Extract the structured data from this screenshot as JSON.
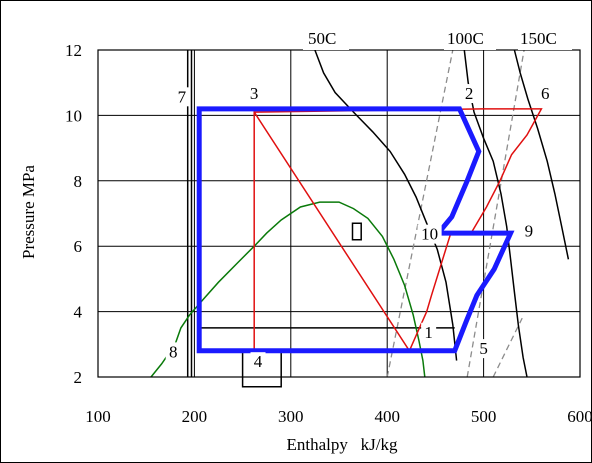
{
  "chart_data": {
    "type": "line",
    "xlabel": "Enthalpy   kJ/kg",
    "ylabel": "Pressure MPa",
    "xlim": [
      100,
      600
    ],
    "ylim": [
      2,
      12
    ],
    "xticks": [
      100,
      200,
      300,
      400,
      500,
      600
    ],
    "yticks": [
      2,
      4,
      6,
      8,
      10,
      12
    ],
    "grid": true,
    "colors": {
      "cycle_outer": "#1a1aff",
      "cycle_inner": "#e01010",
      "saturation_dome": "#0a7a0a",
      "isotherm": "#000000",
      "isentrope": "#8c8c8c",
      "auxiliary": "#000000"
    },
    "isotherm_labels": [
      "50C",
      "100C",
      "150C"
    ],
    "series": [
      {
        "key": "outer_cycle",
        "style": "cycle_outer",
        "closed": true,
        "x": [
          205,
          205,
          475,
          495,
          483,
          467,
          453,
          528,
          511,
          493,
          482,
          470,
          205
        ],
        "y": [
          2.8,
          10.2,
          10.2,
          8.9,
          8.0,
          6.9,
          6.4,
          6.4,
          5.3,
          4.5,
          3.7,
          2.8,
          2.8
        ]
      },
      {
        "key": "inner_cycle",
        "style": "cycle_inner",
        "closed": true,
        "x": [
          262,
          262,
          262,
          262,
          262,
          423,
          432,
          441,
          446,
          466,
          487,
          503,
          517,
          529,
          545,
          560,
          498,
          262
        ],
        "y": [
          2.8,
          4.5,
          6.0,
          8.0,
          10.1,
          2.8,
          3.4,
          4.0,
          4.5,
          6.4,
          6.4,
          7.2,
          8.0,
          8.8,
          9.4,
          10.2,
          10.2,
          10.1
        ]
      },
      {
        "key": "saturation_dome",
        "style": "saturation_dome",
        "closed": false,
        "x": [
          155,
          166,
          180,
          186,
          195,
          210,
          225,
          245,
          262,
          275,
          290,
          310,
          330,
          350,
          365,
          380,
          395,
          407,
          418,
          427,
          433,
          437,
          439
        ],
        "y": [
          2.0,
          2.4,
          3.0,
          3.5,
          3.9,
          4.4,
          4.9,
          5.5,
          6.0,
          6.4,
          6.8,
          7.2,
          7.35,
          7.35,
          7.15,
          6.85,
          6.3,
          5.6,
          4.8,
          3.9,
          3.1,
          2.5,
          2.0
        ]
      },
      {
        "key": "isotherm_50",
        "style": "isotherm",
        "closed": false,
        "x": [
          325,
          334,
          346,
          365,
          385,
          403,
          418,
          430,
          441,
          452,
          461,
          468,
          472
        ],
        "y": [
          12.0,
          11.3,
          10.7,
          10.1,
          9.5,
          8.9,
          8.2,
          7.5,
          6.7,
          5.9,
          4.9,
          3.6,
          2.5
        ]
      },
      {
        "key": "isotherm_100",
        "style": "isotherm",
        "closed": false,
        "x": [
          480,
          484,
          490,
          500,
          510,
          518,
          524,
          528,
          532,
          536,
          541,
          545
        ],
        "y": [
          12.0,
          11.0,
          10.1,
          9.3,
          8.6,
          7.6,
          6.6,
          5.6,
          4.6,
          3.6,
          2.6,
          2.0
        ]
      },
      {
        "key": "isotherm_150",
        "style": "isotherm",
        "closed": false,
        "x": [
          532,
          538,
          546,
          556,
          566,
          574,
          581,
          588
        ],
        "y": [
          12.0,
          11.3,
          10.5,
          9.6,
          8.6,
          7.6,
          6.6,
          5.6
        ]
      },
      {
        "key": "isentrope_1",
        "style": "isentrope",
        "dashed": true,
        "closed": false,
        "x": [
          400,
          468
        ],
        "y": [
          2.0,
          12.0
        ]
      },
      {
        "key": "isentrope_2",
        "style": "isentrope",
        "dashed": true,
        "closed": false,
        "x": [
          483,
          542
        ],
        "y": [
          2.0,
          12.0
        ]
      },
      {
        "key": "isentrope_3",
        "style": "isentrope",
        "dashed": true,
        "closed": false,
        "x": [
          510,
          540
        ],
        "y": [
          2.0,
          3.8
        ]
      },
      {
        "key": "liquid_line_left",
        "style": "auxiliary",
        "closed": false,
        "x": [
          193,
          193,
          193
        ],
        "y": [
          12.0,
          9.6,
          2.0
        ]
      },
      {
        "key": "liquid_line_right",
        "style": "auxiliary",
        "closed": false,
        "x": [
          197,
          197
        ],
        "y": [
          12.0,
          2.0
        ]
      },
      {
        "key": "thin_low_pressure_line",
        "style": "auxiliary",
        "closed": false,
        "x": [
          205,
          470
        ],
        "y": [
          3.5,
          3.5
        ]
      },
      {
        "key": "box_point_4",
        "style": "auxiliary",
        "closed": true,
        "x": [
          250,
          250,
          290,
          290
        ],
        "y": [
          2.8,
          1.7,
          1.7,
          2.8
        ]
      },
      {
        "key": "small_square",
        "style": "auxiliary",
        "closed": true,
        "x": [
          364,
          364,
          373,
          373
        ],
        "y": [
          6.7,
          6.2,
          6.2,
          6.7
        ]
      }
    ],
    "point_labels": [
      {
        "text": "1",
        "x": 443,
        "y": 3.2
      },
      {
        "text": "2",
        "x": 485,
        "y": 10.5
      },
      {
        "text": "3",
        "x": 262,
        "y": 10.5
      },
      {
        "text": "4",
        "x": 266,
        "y": 2.3
      },
      {
        "text": "5",
        "x": 500,
        "y": 2.7
      },
      {
        "text": "6",
        "x": 564,
        "y": 10.5
      },
      {
        "text": "7",
        "x": 187,
        "y": 10.4
      },
      {
        "text": "8",
        "x": 178,
        "y": 2.6
      },
      {
        "text": "9",
        "x": 547,
        "y": 6.3
      },
      {
        "text": "10",
        "x": 444,
        "y": 6.2
      }
    ]
  }
}
